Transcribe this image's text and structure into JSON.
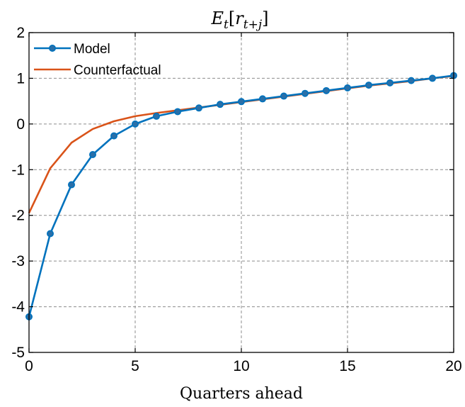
{
  "chart_data": {
    "type": "line",
    "title": "E_t[r_{t+j}]",
    "title_display": {
      "base": "E",
      "sub1": "t",
      "open": "[",
      "r": "r",
      "sub2": "t+j",
      "close": "]"
    },
    "xlabel": "Quarters ahead",
    "ylabel": "",
    "xlim": [
      0,
      20
    ],
    "ylim": [
      -5,
      2
    ],
    "xticks": [
      0,
      5,
      10,
      15,
      20
    ],
    "yticks": [
      -5,
      -4,
      -3,
      -2,
      -1,
      0,
      1,
      2
    ],
    "grid": true,
    "legend_position": "top-left",
    "x": [
      0,
      1,
      2,
      3,
      4,
      5,
      6,
      7,
      8,
      9,
      10,
      11,
      12,
      13,
      14,
      15,
      16,
      17,
      18,
      19,
      20
    ],
    "series": [
      {
        "name": "Model",
        "color": "#0072BD",
        "marker": "circle",
        "values": [
          -4.22,
          -2.4,
          -1.33,
          -0.67,
          -0.26,
          0.0,
          0.17,
          0.27,
          0.35,
          0.43,
          0.49,
          0.55,
          0.61,
          0.67,
          0.73,
          0.79,
          0.85,
          0.9,
          0.95,
          1.0,
          1.06
        ]
      },
      {
        "name": "Counterfactual",
        "color": "#D95319",
        "marker": "none",
        "values": [
          -1.95,
          -0.97,
          -0.41,
          -0.11,
          0.06,
          0.17,
          0.24,
          0.3,
          0.36,
          0.42,
          0.48,
          0.54,
          0.6,
          0.66,
          0.72,
          0.78,
          0.84,
          0.89,
          0.94,
          1.0,
          1.05
        ]
      }
    ]
  }
}
